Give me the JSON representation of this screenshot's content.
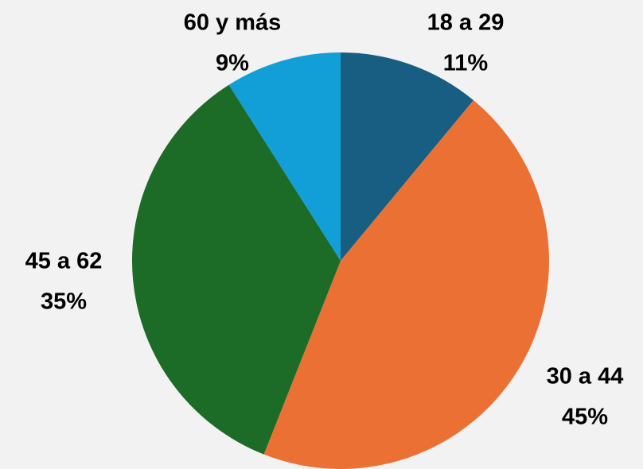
{
  "chart_data": {
    "type": "pie",
    "categories": [
      "18 a 29",
      "30 a 44",
      "45 a 62",
      "60 y más"
    ],
    "values": [
      11,
      45,
      35,
      9
    ],
    "value_labels": [
      "11%",
      "45%",
      "35%",
      "9%"
    ],
    "colors": [
      "#175e82",
      "#ea7133",
      "#1c6b27",
      "#129fd8"
    ]
  }
}
